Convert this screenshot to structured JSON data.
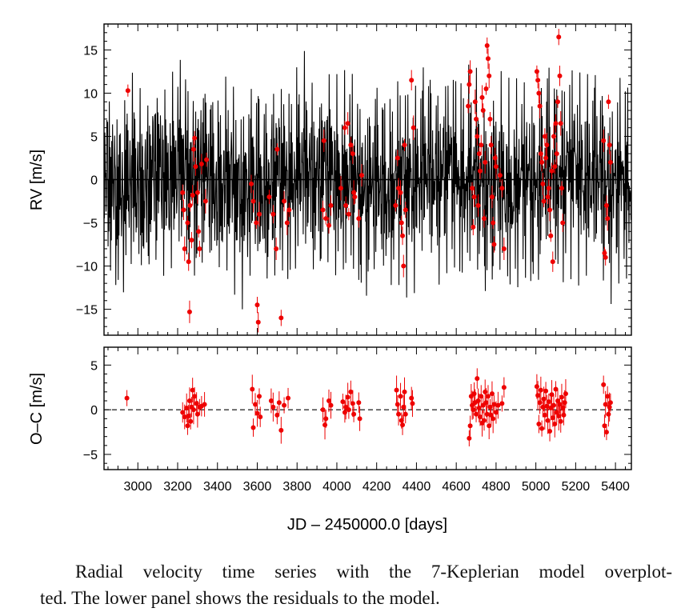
{
  "chart_data": [
    {
      "panel": "top",
      "type": "scatter",
      "ylabel": "RV [m/s]",
      "xlim": [
        2830,
        5480
      ],
      "ylim": [
        -18,
        18
      ],
      "yticks": [
        15,
        10,
        5,
        0,
        -5,
        -10,
        -15
      ],
      "ytick_labels": [
        "15",
        "10",
        "5",
        "0",
        "−5",
        "−10",
        "−15"
      ],
      "zero_line": "solid",
      "model_curve_color": "#000000",
      "point_color": "#ee0000",
      "points": [
        {
          "x": 2950,
          "y": 10.3
        },
        {
          "x": 3225,
          "y": -1.5
        },
        {
          "x": 3230,
          "y": -3.5
        },
        {
          "x": 3235,
          "y": -8
        },
        {
          "x": 3250,
          "y": -5
        },
        {
          "x": 3255,
          "y": -9.5
        },
        {
          "x": 3260,
          "y": -15.3
        },
        {
          "x": 3262,
          "y": -3
        },
        {
          "x": 3270,
          "y": -7
        },
        {
          "x": 3275,
          "y": -1.8
        },
        {
          "x": 3280,
          "y": 3.5
        },
        {
          "x": 3285,
          "y": 4.8
        },
        {
          "x": 3290,
          "y": 1.5
        },
        {
          "x": 3300,
          "y": -1.5
        },
        {
          "x": 3305,
          "y": -6
        },
        {
          "x": 3310,
          "y": -8
        },
        {
          "x": 3320,
          "y": 1.8
        },
        {
          "x": 3340,
          "y": -2.5
        },
        {
          "x": 3345,
          "y": 2.3
        },
        {
          "x": 3570,
          "y": -0.5
        },
        {
          "x": 3580,
          "y": -2.5
        },
        {
          "x": 3595,
          "y": -5
        },
        {
          "x": 3600,
          "y": -14.5
        },
        {
          "x": 3605,
          "y": -16.5
        },
        {
          "x": 3610,
          "y": -4
        },
        {
          "x": 3660,
          "y": -2
        },
        {
          "x": 3680,
          "y": -4
        },
        {
          "x": 3695,
          "y": -8
        },
        {
          "x": 3700,
          "y": 3.5
        },
        {
          "x": 3720,
          "y": -16
        },
        {
          "x": 3735,
          "y": -2.5
        },
        {
          "x": 3750,
          "y": -5
        },
        {
          "x": 3760,
          "y": -3.5
        },
        {
          "x": 3930,
          "y": -3.5
        },
        {
          "x": 3935,
          "y": 4.5
        },
        {
          "x": 3945,
          "y": -4.5
        },
        {
          "x": 3960,
          "y": -5.3
        },
        {
          "x": 3970,
          "y": -3
        },
        {
          "x": 4020,
          "y": -1
        },
        {
          "x": 4040,
          "y": 6
        },
        {
          "x": 4045,
          "y": -3
        },
        {
          "x": 4055,
          "y": 6.5
        },
        {
          "x": 4060,
          "y": -4
        },
        {
          "x": 4070,
          "y": 4
        },
        {
          "x": 4080,
          "y": 3
        },
        {
          "x": 4085,
          "y": -1.5
        },
        {
          "x": 4090,
          "y": -2
        },
        {
          "x": 4110,
          "y": -4.5
        },
        {
          "x": 4125,
          "y": 0.5
        },
        {
          "x": 4295,
          "y": -3
        },
        {
          "x": 4305,
          "y": 2.5
        },
        {
          "x": 4310,
          "y": -1
        },
        {
          "x": 4320,
          "y": -1.5
        },
        {
          "x": 4325,
          "y": -5
        },
        {
          "x": 4330,
          "y": -6.5
        },
        {
          "x": 4335,
          "y": -10
        },
        {
          "x": 4340,
          "y": 4
        },
        {
          "x": 4345,
          "y": -3.5
        },
        {
          "x": 4375,
          "y": 11.5
        },
        {
          "x": 4385,
          "y": 6
        },
        {
          "x": 4660,
          "y": 8.5
        },
        {
          "x": 4665,
          "y": 11
        },
        {
          "x": 4670,
          "y": 12.5
        },
        {
          "x": 4680,
          "y": -1
        },
        {
          "x": 4685,
          "y": -5.5
        },
        {
          "x": 4690,
          "y": -2
        },
        {
          "x": 4695,
          "y": 9
        },
        {
          "x": 4700,
          "y": 7
        },
        {
          "x": 4705,
          "y": 5
        },
        {
          "x": 4710,
          "y": -3
        },
        {
          "x": 4715,
          "y": 3
        },
        {
          "x": 4720,
          "y": 1
        },
        {
          "x": 4725,
          "y": 4
        },
        {
          "x": 4730,
          "y": 9.5
        },
        {
          "x": 4735,
          "y": 8
        },
        {
          "x": 4740,
          "y": -4.5
        },
        {
          "x": 4745,
          "y": 2
        },
        {
          "x": 4750,
          "y": 10.5
        },
        {
          "x": 4755,
          "y": 15.5
        },
        {
          "x": 4760,
          "y": 14
        },
        {
          "x": 4765,
          "y": 12
        },
        {
          "x": 4770,
          "y": 7
        },
        {
          "x": 4775,
          "y": 4
        },
        {
          "x": 4780,
          "y": -2
        },
        {
          "x": 4785,
          "y": -5
        },
        {
          "x": 4790,
          "y": -7.5
        },
        {
          "x": 4795,
          "y": 2.5
        },
        {
          "x": 4800,
          "y": 1.5
        },
        {
          "x": 4820,
          "y": 0.5
        },
        {
          "x": 4830,
          "y": -1
        },
        {
          "x": 4840,
          "y": -8
        },
        {
          "x": 5005,
          "y": 12.5
        },
        {
          "x": 5010,
          "y": 11.5
        },
        {
          "x": 5015,
          "y": 10
        },
        {
          "x": 5020,
          "y": 8.5
        },
        {
          "x": 5025,
          "y": 3
        },
        {
          "x": 5030,
          "y": 2
        },
        {
          "x": 5035,
          "y": -0.5
        },
        {
          "x": 5040,
          "y": -2.5
        },
        {
          "x": 5045,
          "y": 5
        },
        {
          "x": 5050,
          "y": 2.5
        },
        {
          "x": 5055,
          "y": 4
        },
        {
          "x": 5060,
          "y": -2
        },
        {
          "x": 5065,
          "y": -1
        },
        {
          "x": 5070,
          "y": -3.5
        },
        {
          "x": 5075,
          "y": -6.5
        },
        {
          "x": 5080,
          "y": 1
        },
        {
          "x": 5085,
          "y": -9.5
        },
        {
          "x": 5090,
          "y": 5
        },
        {
          "x": 5095,
          "y": 1.5
        },
        {
          "x": 5100,
          "y": 6.5
        },
        {
          "x": 5105,
          "y": 3
        },
        {
          "x": 5110,
          "y": 9
        },
        {
          "x": 5115,
          "y": 16.5
        },
        {
          "x": 5120,
          "y": 12
        },
        {
          "x": 5125,
          "y": 6.5
        },
        {
          "x": 5130,
          "y": -1
        },
        {
          "x": 5135,
          "y": -5
        },
        {
          "x": 5340,
          "y": 4.5
        },
        {
          "x": 5345,
          "y": -8.5
        },
        {
          "x": 5350,
          "y": -9
        },
        {
          "x": 5355,
          "y": -3
        },
        {
          "x": 5360,
          "y": -4.5
        },
        {
          "x": 5365,
          "y": 9
        },
        {
          "x": 5370,
          "y": 4
        },
        {
          "x": 5375,
          "y": 2
        }
      ]
    },
    {
      "panel": "bottom",
      "type": "scatter",
      "xlabel": "JD – 2450000.0 [days]",
      "ylabel": "O–C [m/s]",
      "xlim": [
        2830,
        5480
      ],
      "ylim": [
        -6.7,
        7.0
      ],
      "xticks": [
        3000,
        3200,
        3400,
        3600,
        3800,
        4000,
        4200,
        4400,
        4600,
        4800,
        5000,
        5200,
        5400
      ],
      "xtick_labels": [
        "3000",
        "3200",
        "3400",
        "3600",
        "3800",
        "4000",
        "4200",
        "4400",
        "4600",
        "4800",
        "5000",
        "5200",
        "5400"
      ],
      "yticks": [
        5,
        0,
        -5
      ],
      "ytick_labels": [
        "5",
        "0",
        "−5"
      ],
      "zero_line": "dashed",
      "point_color": "#ee0000",
      "points": [
        {
          "x": 2945,
          "y": 1.3
        },
        {
          "x": 3225,
          "y": -0.3
        },
        {
          "x": 3235,
          "y": -0.8
        },
        {
          "x": 3245,
          "y": 0.2
        },
        {
          "x": 3250,
          "y": -1.8
        },
        {
          "x": 3255,
          "y": -0.7
        },
        {
          "x": 3260,
          "y": 1.0
        },
        {
          "x": 3265,
          "y": -1.3
        },
        {
          "x": 3270,
          "y": 0.3
        },
        {
          "x": 3275,
          "y": 2.2
        },
        {
          "x": 3280,
          "y": 0.0
        },
        {
          "x": 3285,
          "y": 1.5
        },
        {
          "x": 3295,
          "y": 0.7
        },
        {
          "x": 3300,
          "y": -0.5
        },
        {
          "x": 3310,
          "y": 0.3
        },
        {
          "x": 3320,
          "y": 0.4
        },
        {
          "x": 3335,
          "y": 0.6
        },
        {
          "x": 3575,
          "y": 2.3
        },
        {
          "x": 3580,
          "y": -2.0
        },
        {
          "x": 3590,
          "y": 0.6
        },
        {
          "x": 3600,
          "y": -0.4
        },
        {
          "x": 3610,
          "y": 1.5
        },
        {
          "x": 3615,
          "y": -0.8
        },
        {
          "x": 3670,
          "y": 1.0
        },
        {
          "x": 3680,
          "y": 0.3
        },
        {
          "x": 3700,
          "y": -0.6
        },
        {
          "x": 3710,
          "y": 0.8
        },
        {
          "x": 3720,
          "y": -2.3
        },
        {
          "x": 3735,
          "y": 0.5
        },
        {
          "x": 3755,
          "y": 1.3
        },
        {
          "x": 3930,
          "y": 0.0
        },
        {
          "x": 3940,
          "y": -1.7
        },
        {
          "x": 3945,
          "y": -1.0
        },
        {
          "x": 3960,
          "y": 1.0
        },
        {
          "x": 3970,
          "y": 0.5
        },
        {
          "x": 4030,
          "y": 0.9
        },
        {
          "x": 4040,
          "y": -0.3
        },
        {
          "x": 4045,
          "y": 0.3
        },
        {
          "x": 4055,
          "y": 1.4
        },
        {
          "x": 4060,
          "y": 0.0
        },
        {
          "x": 4070,
          "y": 2.0
        },
        {
          "x": 4080,
          "y": 0.7
        },
        {
          "x": 4085,
          "y": -0.5
        },
        {
          "x": 4110,
          "y": 0.8
        },
        {
          "x": 4115,
          "y": -1.0
        },
        {
          "x": 4300,
          "y": 2.2
        },
        {
          "x": 4305,
          "y": 0.6
        },
        {
          "x": 4310,
          "y": -0.5
        },
        {
          "x": 4320,
          "y": 1.5
        },
        {
          "x": 4325,
          "y": -1.2
        },
        {
          "x": 4330,
          "y": -1.7
        },
        {
          "x": 4335,
          "y": 0.3
        },
        {
          "x": 4340,
          "y": 2.0
        },
        {
          "x": 4345,
          "y": -0.5
        },
        {
          "x": 4375,
          "y": 1.3
        },
        {
          "x": 4380,
          "y": 0.7
        },
        {
          "x": 4665,
          "y": -3.2
        },
        {
          "x": 4670,
          "y": -1.8
        },
        {
          "x": 4675,
          "y": 1.5
        },
        {
          "x": 4680,
          "y": 0.5
        },
        {
          "x": 4685,
          "y": 0.0
        },
        {
          "x": 4690,
          "y": 1.8
        },
        {
          "x": 4695,
          "y": 0.8
        },
        {
          "x": 4700,
          "y": -0.5
        },
        {
          "x": 4705,
          "y": 3.5
        },
        {
          "x": 4710,
          "y": 1.0
        },
        {
          "x": 4715,
          "y": 0.2
        },
        {
          "x": 4720,
          "y": -0.8
        },
        {
          "x": 4725,
          "y": 1.5
        },
        {
          "x": 4730,
          "y": -1.5
        },
        {
          "x": 4735,
          "y": 0.5
        },
        {
          "x": 4740,
          "y": -1.2
        },
        {
          "x": 4745,
          "y": 2.0
        },
        {
          "x": 4750,
          "y": 0.8
        },
        {
          "x": 4755,
          "y": -0.5
        },
        {
          "x": 4760,
          "y": 1.5
        },
        {
          "x": 4765,
          "y": -1.8
        },
        {
          "x": 4770,
          "y": 0.3
        },
        {
          "x": 4775,
          "y": -0.6
        },
        {
          "x": 4780,
          "y": 1.8
        },
        {
          "x": 4785,
          "y": -1.0
        },
        {
          "x": 4790,
          "y": 0.6
        },
        {
          "x": 4800,
          "y": -0.3
        },
        {
          "x": 4810,
          "y": 0.5
        },
        {
          "x": 4830,
          "y": 0.7
        },
        {
          "x": 4840,
          "y": 2.5
        },
        {
          "x": 5005,
          "y": 2.6
        },
        {
          "x": 5010,
          "y": 1.6
        },
        {
          "x": 5015,
          "y": -1.6
        },
        {
          "x": 5020,
          "y": 0.8
        },
        {
          "x": 5025,
          "y": 2.2
        },
        {
          "x": 5030,
          "y": -2.1
        },
        {
          "x": 5035,
          "y": 0.3
        },
        {
          "x": 5040,
          "y": 1.2
        },
        {
          "x": 5045,
          "y": -0.6
        },
        {
          "x": 5050,
          "y": 2.1
        },
        {
          "x": 5055,
          "y": 0.4
        },
        {
          "x": 5060,
          "y": -1.2
        },
        {
          "x": 5065,
          "y": 0.9
        },
        {
          "x": 5070,
          "y": -2.4
        },
        {
          "x": 5075,
          "y": 0.2
        },
        {
          "x": 5080,
          "y": 1.7
        },
        {
          "x": 5085,
          "y": -0.9
        },
        {
          "x": 5090,
          "y": 0.5
        },
        {
          "x": 5095,
          "y": -1.6
        },
        {
          "x": 5100,
          "y": 2.3
        },
        {
          "x": 5105,
          "y": -0.3
        },
        {
          "x": 5110,
          "y": 1.0
        },
        {
          "x": 5115,
          "y": -0.7
        },
        {
          "x": 5120,
          "y": 0.6
        },
        {
          "x": 5125,
          "y": -1.3
        },
        {
          "x": 5130,
          "y": 1.4
        },
        {
          "x": 5135,
          "y": 0.2
        },
        {
          "x": 5140,
          "y": -0.6
        },
        {
          "x": 5145,
          "y": 0.8
        },
        {
          "x": 5150,
          "y": 1.8
        },
        {
          "x": 5340,
          "y": 2.8
        },
        {
          "x": 5345,
          "y": -1.8
        },
        {
          "x": 5350,
          "y": 0.6
        },
        {
          "x": 5355,
          "y": -2.5
        },
        {
          "x": 5360,
          "y": 1.5
        },
        {
          "x": 5365,
          "y": -0.5
        },
        {
          "x": 5370,
          "y": 0.3
        },
        {
          "x": 5375,
          "y": 0.8
        }
      ]
    }
  ],
  "caption": {
    "line1": "Radial velocity time series with the 7-Keplerian model overplot-",
    "line2": "ted. The lower panel shows the residuals to the model."
  }
}
